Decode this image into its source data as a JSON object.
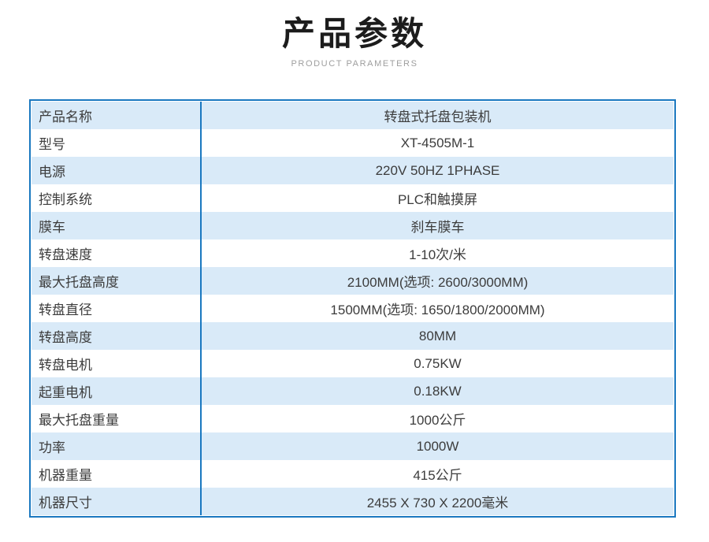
{
  "header": {
    "title": "产品参数",
    "subtitle": "PRODUCT PARAMETERS"
  },
  "table": {
    "rows": [
      {
        "label": "产品名称",
        "value": "转盘式托盘包装机"
      },
      {
        "label": "型号",
        "value": "XT-4505M-1"
      },
      {
        "label": "电源",
        "value": "220V 50HZ 1PHASE"
      },
      {
        "label": "控制系统",
        "value": "PLC和触摸屏"
      },
      {
        "label": "膜车",
        "value": "刹车膜车"
      },
      {
        "label": "转盘速度",
        "value": "1-10次/米"
      },
      {
        "label": "最大托盘高度",
        "value": "2100MM(选项: 2600/3000MM)"
      },
      {
        "label": "转盘直径",
        "value": "1500MM(选项: 1650/1800/2000MM)"
      },
      {
        "label": "转盘高度",
        "value": "80MM"
      },
      {
        "label": "转盘电机",
        "value": "0.75KW"
      },
      {
        "label": "起重电机",
        "value": "0.18KW"
      },
      {
        "label": "最大托盘重量",
        "value": "1000公斤"
      },
      {
        "label": "功率",
        "value": "1000W"
      },
      {
        "label": "机器重量",
        "value": "415公斤"
      },
      {
        "label": "机器尺寸",
        "value": "2455 X 730 X 2200毫米"
      }
    ]
  },
  "colors": {
    "border_blue": "#1a78c0",
    "row_alt_blue": "#d9eaf8",
    "title_color": "#1c1c1c",
    "subtitle_color": "#9e9e9e",
    "cell_text_color": "#3c3c3c"
  }
}
